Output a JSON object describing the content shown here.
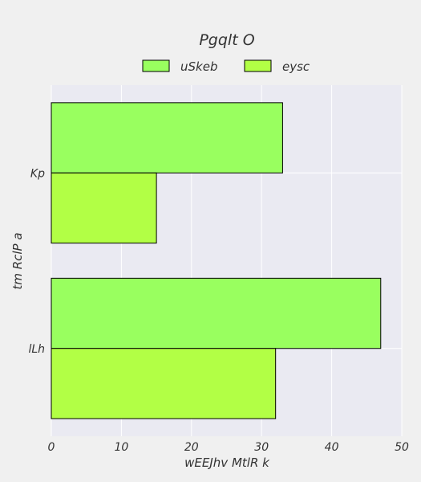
{
  "chart_data": {
    "type": "bar",
    "orientation": "horizontal",
    "title": "Pgqlt O",
    "xlabel": "wEEJhv MtlR k",
    "ylabel": "tm RclP a",
    "categories": [
      "Kp",
      "lLh"
    ],
    "series": [
      {
        "name": "uSkeb",
        "values": [
          33,
          47
        ],
        "color": "#99ff5f"
      },
      {
        "name": "eysc",
        "values": [
          15,
          32
        ],
        "color": "#b2ff45"
      }
    ],
    "xlim": [
      0,
      50
    ],
    "xticks": [
      "0",
      "10",
      "20",
      "30",
      "40",
      "50"
    ],
    "grid": true,
    "legend_position": "top-center",
    "plot_background": "#eaeaf2",
    "page_background": "#f0f0f0"
  }
}
